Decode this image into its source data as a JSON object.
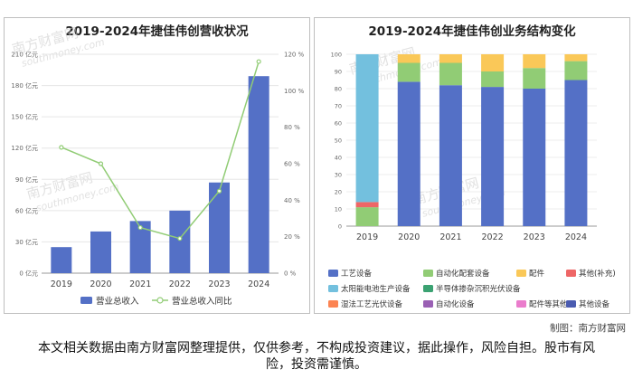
{
  "chart_data": [
    {
      "type": "bar",
      "title": "2019-2024年捷佳伟创营收状况",
      "categories": [
        "2019",
        "2020",
        "2021",
        "2022",
        "2023",
        "2024"
      ],
      "series": [
        {
          "name": "营业总收入",
          "type": "bar",
          "axis": "left",
          "color": "#5470c6",
          "values": [
            25,
            40,
            50,
            60,
            87,
            189
          ]
        },
        {
          "name": "营业总收入同比",
          "type": "line",
          "axis": "right",
          "color": "#91cc75",
          "values": [
            69,
            60,
            25,
            19,
            45,
            116
          ]
        }
      ],
      "left_axis": {
        "ticks": [
          "0 亿元",
          "30 亿元",
          "60 亿元",
          "90 亿元",
          "120 亿元",
          "150 亿元",
          "180 亿元",
          "210 亿元"
        ],
        "ylim": [
          0,
          210
        ]
      },
      "right_axis": {
        "ticks": [
          "0 %",
          "20 %",
          "40 %",
          "60 %",
          "80 %",
          "100 %",
          "120 %"
        ],
        "ylim": [
          0,
          120
        ]
      },
      "legend": [
        "营业总收入",
        "营业总收入同比"
      ],
      "legend_position": "bottom"
    },
    {
      "type": "stacked-bar",
      "title": "2019-2024年捷佳伟创业务结构变化",
      "categories": [
        "2019",
        "2020",
        "2021",
        "2022",
        "2023",
        "2024"
      ],
      "ylim": [
        0,
        100
      ],
      "y_ticks": [
        "0",
        "10",
        "20",
        "30",
        "40",
        "50",
        "60",
        "70",
        "80",
        "90",
        "100"
      ],
      "series": [
        {
          "name": "工艺设备",
          "color": "#5470c6",
          "values": [
            0,
            84,
            82,
            81,
            80,
            85
          ]
        },
        {
          "name": "自动化配套设备",
          "color": "#91cc75",
          "values": [
            11,
            11,
            13,
            9,
            12,
            11
          ]
        },
        {
          "name": "配件",
          "color": "#fac858",
          "values": [
            0,
            5,
            5,
            10,
            8,
            4
          ]
        },
        {
          "name": "其他(补充)",
          "color": "#ee6666",
          "values": [
            3,
            0,
            0,
            0,
            0,
            0
          ]
        },
        {
          "name": "太阳能电池生产设备",
          "color": "#73c0de",
          "values": [
            86,
            0,
            0,
            0,
            0,
            0
          ]
        },
        {
          "name": "半导体掺杂沉积光伏设备",
          "color": "#3ba272",
          "values": [
            0,
            0,
            0,
            0,
            0,
            0
          ]
        },
        {
          "name": "湿法工艺光伏设备",
          "color": "#fc8452",
          "values": [
            0,
            0,
            0,
            0,
            0,
            0
          ]
        },
        {
          "name": "自动化设备",
          "color": "#9a60b4",
          "values": [
            0,
            0,
            0,
            0,
            0,
            0
          ]
        },
        {
          "name": "配件等其他",
          "color": "#ea7ccc",
          "values": [
            0,
            0,
            0,
            0,
            0,
            0
          ]
        },
        {
          "name": "其他设备",
          "color": "#4a5bb0",
          "values": [
            0,
            0,
            0,
            0,
            0,
            0
          ]
        }
      ],
      "legend_position": "bottom"
    }
  ],
  "watermark": {
    "brand_cn": "南方财富网",
    "brand_en": "southmoney.com"
  },
  "credit": "制图：南方财富网",
  "disclaimer": "本文相关数据由南方财富网整理提供，仅供参考，不构成投资建议，据此操作，风险自担。股市有风险，投资需谨慎。"
}
